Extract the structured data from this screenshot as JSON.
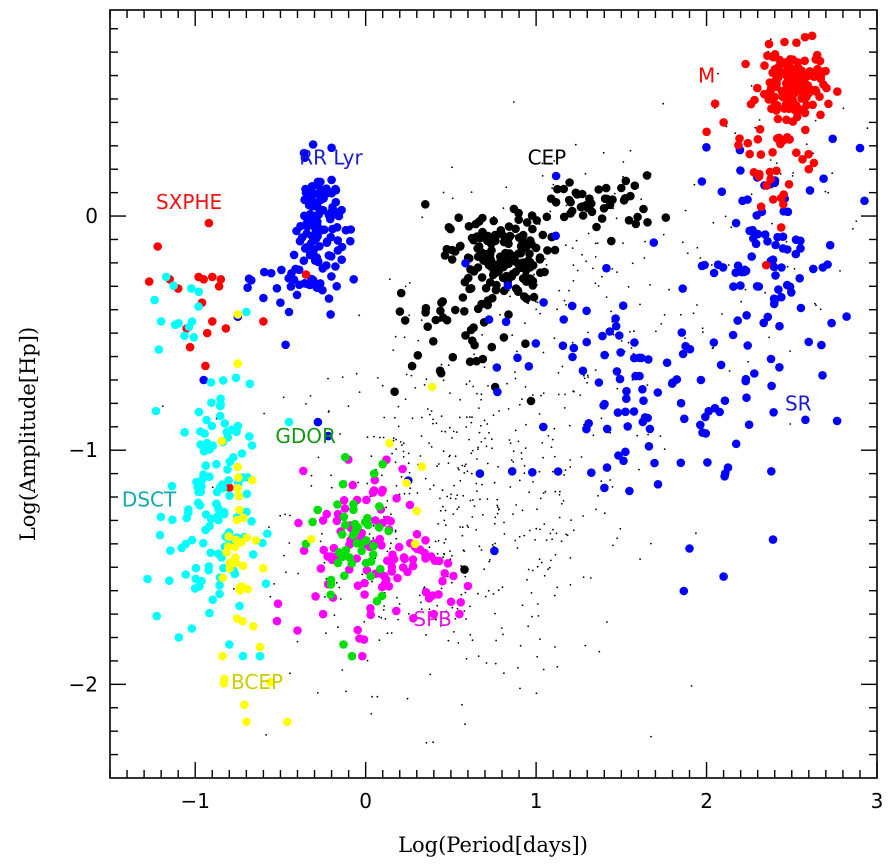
{
  "chart_data": {
    "type": "scatter",
    "title": "",
    "xlabel": "Log(Period[days])",
    "ylabel": "Log(Amplitude[Hp])",
    "xlim": [
      -1.5,
      3.0
    ],
    "ylim": [
      -2.4,
      0.88
    ],
    "x_ticks": [
      -1,
      0,
      1,
      2,
      3
    ],
    "x_tick_labels": [
      "−1",
      "0",
      "1",
      "2",
      "3"
    ],
    "y_ticks": [
      -2,
      -1,
      0
    ],
    "y_tick_labels": [
      "−2",
      "−1",
      "0"
    ],
    "grid": false,
    "colors": {
      "M": "#ff0000",
      "SXPHE": "#ff0000",
      "RR Lyr": "#0000ff",
      "SR": "#0000ff",
      "CEP": "#000000",
      "DSCT": "#00ffff",
      "BCEP": "#ffff00",
      "GDOR": "#00dd00",
      "SPB": "#ff00ff",
      "other": "#000000"
    },
    "labels": [
      {
        "text": "M",
        "x": 1.95,
        "y": 0.57,
        "color": "#ff0000"
      },
      {
        "text": "RR Lyr",
        "x": -0.39,
        "y": 0.22,
        "color": "#1a1ad6"
      },
      {
        "text": "CEP",
        "x": 0.95,
        "y": 0.22,
        "color": "#000000"
      },
      {
        "text": "SXPHE",
        "x": -1.23,
        "y": 0.03,
        "color": "#ee1111"
      },
      {
        "text": "SR",
        "x": 2.46,
        "y": -0.83,
        "color": "#1a1ad6"
      },
      {
        "text": "GDOR",
        "x": -0.53,
        "y": -0.97,
        "color": "#119911"
      },
      {
        "text": "DSCT",
        "x": -1.43,
        "y": -1.24,
        "color": "#11aaaa"
      },
      {
        "text": "SPB",
        "x": 0.28,
        "y": -1.75,
        "color": "#ee11ee"
      },
      {
        "text": "BCEP",
        "x": -0.79,
        "y": -2.02,
        "color": "#cccc00"
      }
    ],
    "series": [
      {
        "name": "M",
        "color": "#ff0000",
        "n": 200,
        "clusters": [
          {
            "cx": 2.5,
            "cy": 0.56,
            "sx": 0.09,
            "sy": 0.07,
            "n": 150
          },
          {
            "cx": 2.42,
            "cy": 0.3,
            "sx": 0.14,
            "sy": 0.15,
            "n": 35
          }
        ],
        "points": [
          [
            2.0,
            0.36
          ],
          [
            2.05,
            0.48
          ],
          [
            2.62,
            0.77
          ],
          [
            2.35,
            -0.21
          ],
          [
            2.45,
            0.05
          ],
          [
            2.6,
            0.2
          ],
          [
            2.32,
            0.04
          ],
          [
            2.1,
            0.4
          ]
        ]
      },
      {
        "name": "SXPHE",
        "color": "#ff0000",
        "points": [
          [
            -1.22,
            -0.13
          ],
          [
            -1.27,
            -0.28
          ],
          [
            -1.15,
            -0.27
          ],
          [
            -1.1,
            -0.31
          ],
          [
            -0.92,
            -0.03
          ],
          [
            -0.98,
            -0.26
          ],
          [
            -0.95,
            -0.27
          ],
          [
            -0.9,
            -0.26
          ],
          [
            -0.85,
            -0.27
          ],
          [
            -0.86,
            -0.3
          ],
          [
            -0.96,
            -0.37
          ],
          [
            -1.05,
            -0.48
          ],
          [
            -0.9,
            -0.45
          ],
          [
            -0.93,
            -0.5
          ],
          [
            -0.82,
            -0.48
          ],
          [
            -1.03,
            -0.56
          ],
          [
            -0.94,
            -0.64
          ],
          [
            -0.6,
            -0.45
          ],
          [
            -0.35,
            -0.25
          ],
          [
            -0.8,
            -1.16
          ]
        ]
      },
      {
        "name": "RR Lyr",
        "color": "#0000ff",
        "n": 140,
        "clusters": [
          {
            "cx": -0.28,
            "cy": -0.02,
            "sx": 0.07,
            "sy": 0.12,
            "n": 100
          },
          {
            "cx": -0.35,
            "cy": -0.27,
            "sx": 0.13,
            "sy": 0.06,
            "n": 30
          }
        ],
        "points": [
          [
            -0.5,
            -0.37
          ],
          [
            -0.45,
            -0.41
          ],
          [
            -0.32,
            0.12
          ],
          [
            -0.17,
            -0.3
          ],
          [
            -0.07,
            -0.27
          ],
          [
            -0.47,
            -0.55
          ],
          [
            -0.75,
            -0.43
          ],
          [
            -0.95,
            -0.7
          ],
          [
            -0.6,
            -0.35
          ]
        ]
      },
      {
        "name": "SR",
        "color": "#0000ff",
        "n": 200,
        "clusters": [
          {
            "cx": 2.35,
            "cy": -0.2,
            "sx": 0.22,
            "sy": 0.22,
            "n": 90
          },
          {
            "cx": 1.6,
            "cy": -0.78,
            "sx": 0.22,
            "sy": 0.18,
            "n": 60
          },
          {
            "cx": 1.2,
            "cy": -0.55,
            "sx": 0.35,
            "sy": 0.3,
            "n": 25
          },
          {
            "cx": 2.2,
            "cy": -0.95,
            "sx": 0.3,
            "sy": 0.3,
            "n": 20
          }
        ],
        "points": [
          [
            2.9,
            0.29
          ],
          [
            2.74,
            0.33
          ],
          [
            2.58,
            -0.87
          ],
          [
            2.68,
            -0.68
          ],
          [
            1.9,
            -1.42
          ],
          [
            2.1,
            -1.54
          ],
          [
            2.38,
            -1.09
          ],
          [
            0.25,
            -1.13
          ],
          [
            0.67,
            -1.1
          ],
          [
            0.86,
            -1.09
          ],
          [
            -0.22,
            -0.94
          ],
          [
            -0.28,
            -0.88
          ]
        ]
      },
      {
        "name": "CEP",
        "color": "#000000",
        "n": 260,
        "clusters": [
          {
            "cx": 0.78,
            "cy": -0.18,
            "sx": 0.14,
            "sy": 0.09,
            "n": 150
          },
          {
            "cx": 1.35,
            "cy": 0.05,
            "sx": 0.18,
            "sy": 0.06,
            "n": 45
          },
          {
            "cx": 0.55,
            "cy": -0.45,
            "sx": 0.18,
            "sy": 0.1,
            "n": 40
          }
        ],
        "points": [
          [
            0.65,
            -0.62
          ],
          [
            0.76,
            -0.73
          ],
          [
            0.97,
            -0.79
          ],
          [
            0.17,
            -0.75
          ],
          [
            0.58,
            -1.51
          ],
          [
            0.35,
            0.05
          ],
          [
            1.63,
            0.03
          ],
          [
            1.5,
            0.12
          ]
        ]
      },
      {
        "name": "DSCT",
        "color": "#00ffff",
        "n": 150,
        "clusters": [
          {
            "cx": -0.92,
            "cy": -1.28,
            "sx": 0.12,
            "sy": 0.28,
            "n": 120
          },
          {
            "cx": -1.05,
            "cy": -0.4,
            "sx": 0.1,
            "sy": 0.12,
            "n": 12
          }
        ],
        "points": [
          [
            -1.28,
            -1.55
          ],
          [
            -0.62,
            -1.88
          ],
          [
            -0.8,
            -1.83
          ],
          [
            -0.45,
            -0.88
          ],
          [
            -0.97,
            -0.92
          ],
          [
            -0.7,
            -0.41
          ],
          [
            -1.2,
            -0.45
          ],
          [
            -1.17,
            -0.26
          ]
        ]
      },
      {
        "name": "BCEP",
        "color": "#ffff00",
        "n": 45,
        "clusters": [
          {
            "cx": -0.73,
            "cy": -1.45,
            "sx": 0.06,
            "sy": 0.25,
            "n": 35
          }
        ],
        "points": [
          [
            -0.7,
            -2.16
          ],
          [
            -0.46,
            -2.16
          ],
          [
            -0.84,
            -1.88
          ],
          [
            -0.62,
            -1.84
          ],
          [
            -0.75,
            -0.42
          ],
          [
            -0.75,
            -0.63
          ],
          [
            0.39,
            -0.73
          ],
          [
            0.14,
            -0.97
          ],
          [
            0.33,
            -1.07
          ],
          [
            0.24,
            -1.14
          ],
          [
            0.3,
            -1.26
          ],
          [
            0.29,
            -1.4
          ],
          [
            -0.32,
            -1.38
          ]
        ]
      },
      {
        "name": "GDOR",
        "color": "#00dd00",
        "n": 45,
        "clusters": [
          {
            "cx": -0.07,
            "cy": -1.38,
            "sx": 0.12,
            "sy": 0.14,
            "n": 40
          }
        ],
        "points": [
          [
            -0.12,
            -1.03
          ],
          [
            -0.08,
            -1.88
          ],
          [
            -0.13,
            -1.83
          ],
          [
            -0.35,
            -1.4
          ],
          [
            0.08,
            -1.24
          ],
          [
            0.05,
            -1.1
          ],
          [
            0.1,
            -1.06
          ]
        ]
      },
      {
        "name": "SPB",
        "color": "#ff00ff",
        "n": 110,
        "clusters": [
          {
            "cx": 0.05,
            "cy": -1.4,
            "sx": 0.17,
            "sy": 0.17,
            "n": 90
          },
          {
            "cx": 0.3,
            "cy": -1.55,
            "sx": 0.2,
            "sy": 0.1,
            "n": 15
          }
        ],
        "points": [
          [
            -0.52,
            -1.73
          ],
          [
            -0.4,
            -1.77
          ],
          [
            -0.25,
            -1.7
          ],
          [
            0.55,
            -1.7
          ],
          [
            0.6,
            -1.58
          ],
          [
            0.4,
            -1.7
          ],
          [
            0.1,
            -1.17
          ],
          [
            -0.02,
            -1.88
          ]
        ]
      },
      {
        "name": "other",
        "color": "#000000",
        "marker": "dot",
        "n": 750,
        "clusters": [
          {
            "cx": 0.55,
            "cy": -1.25,
            "sx": 0.5,
            "sy": 0.38,
            "n": 520
          },
          {
            "cx": 1.3,
            "cy": -0.3,
            "sx": 0.5,
            "sy": 0.35,
            "n": 150
          },
          {
            "cx": 2.4,
            "cy": 0.1,
            "sx": 0.25,
            "sy": 0.35,
            "n": 60
          }
        ]
      }
    ]
  }
}
